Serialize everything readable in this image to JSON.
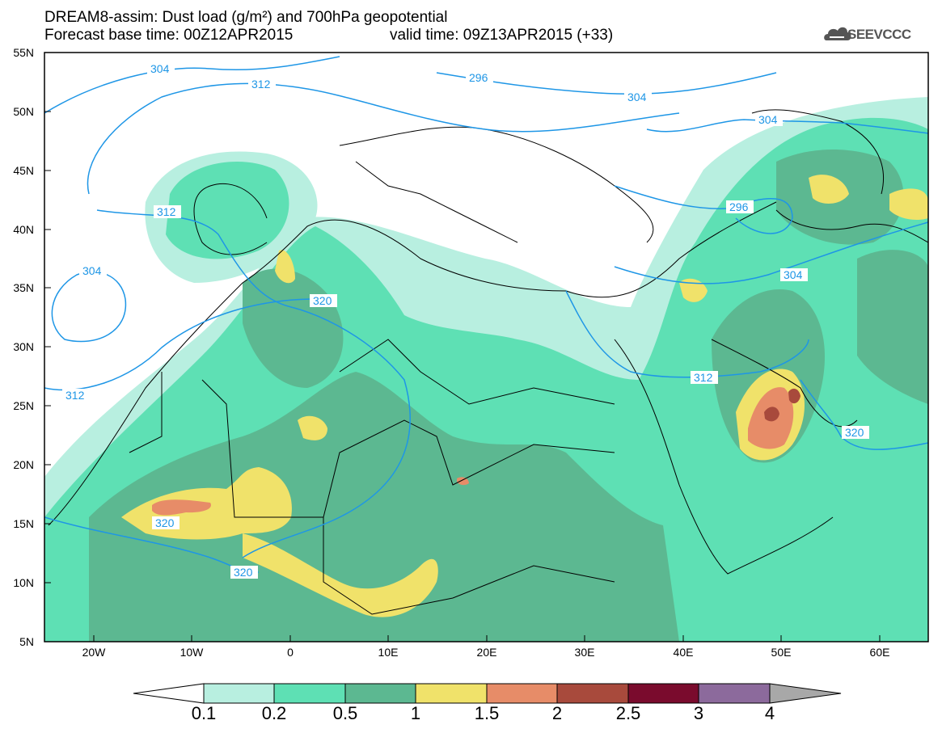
{
  "title": {
    "line1": "DREAM8-assim: Dust load (g/m²) and 700hPa geopotential",
    "line2_left": "Forecast base time: 00Z12APR2015",
    "line2_right": "valid time: 09Z13APR2015 (+33)"
  },
  "logo": {
    "text": "SEEVCCC",
    "icon": "cloud-logo-icon"
  },
  "axes": {
    "lat_labels": [
      "55N",
      "50N",
      "45N",
      "40N",
      "35N",
      "30N",
      "25N",
      "20N",
      "15N",
      "10N",
      "5N"
    ],
    "lon_labels": [
      "20W",
      "10W",
      "0",
      "10E",
      "20E",
      "30E",
      "40E",
      "50E",
      "60E"
    ]
  },
  "contours": {
    "labels": [
      "304",
      "312",
      "296",
      "304",
      "304",
      "312",
      "296",
      "304",
      "304",
      "320",
      "312",
      "312",
      "320",
      "320",
      "320"
    ]
  },
  "colorbar": {
    "labels": [
      "0.1",
      "0.2",
      "0.5",
      "1",
      "1.5",
      "2",
      "2.5",
      "3",
      "4"
    ],
    "colors": [
      "#ffffff",
      "#b8efe0",
      "#5ee0b4",
      "#5cb891",
      "#f0e26a",
      "#e78c68",
      "#a84a3c",
      "#7a0b2d",
      "#8c6a9c",
      "#a8a8a8"
    ]
  },
  "map_colors": {
    "ocean": "#ffffff",
    "dust_01": "#b8efe0",
    "dust_02": "#5ee0b4",
    "dust_05": "#5cb891",
    "dust_1": "#f0e26a",
    "dust_15": "#e78c68",
    "dust_2": "#a84a3c",
    "contour": "#1e96e6",
    "borders": "#000000"
  }
}
